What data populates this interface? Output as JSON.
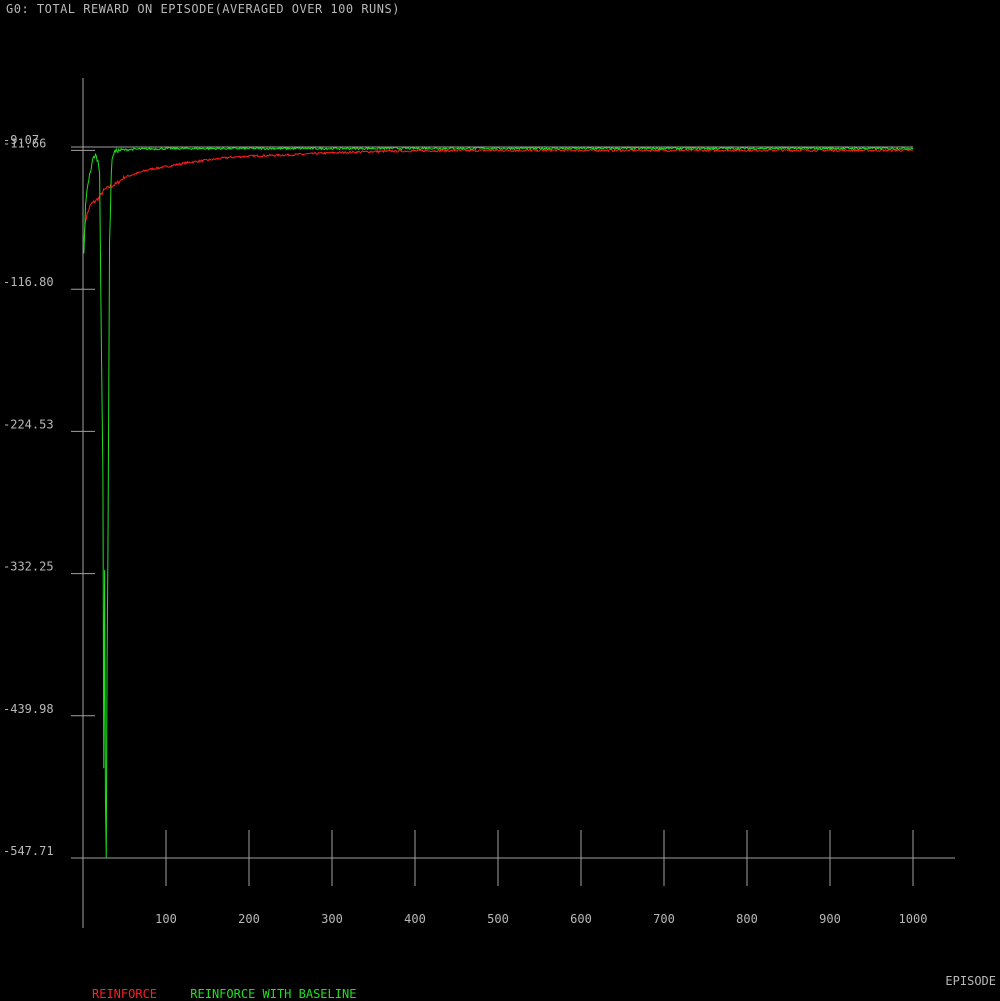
{
  "title": "G0: TOTAL REWARD ON EPISODE(AVERAGED OVER 100 RUNS)",
  "chart_data": {
    "type": "line",
    "title": "G0: TOTAL REWARD ON EPISODE(AVERAGED OVER 100 RUNS)",
    "xlabel": "EPISODE",
    "ylabel": "",
    "xlim": [
      0,
      1000
    ],
    "ylim": [
      -547.71,
      -9.07
    ],
    "x_ticks": [
      100,
      200,
      300,
      400,
      500,
      600,
      700,
      800,
      900,
      1000
    ],
    "x_tick_labels": [
      "100",
      "200",
      "300",
      "400",
      "500",
      "600",
      "700",
      "800",
      "900",
      "1000"
    ],
    "y_ticks": [
      -547.71,
      -439.98,
      -332.25,
      -224.53,
      -116.8,
      -11.66,
      -9.07
    ],
    "y_tick_labels": [
      "-547.71",
      "-439.98",
      "-332.25",
      "-224.53",
      "-116.80",
      "-11.66",
      "-9.07"
    ],
    "grid": false,
    "legend": "bottom-left",
    "series": [
      {
        "name": "REINFORCE",
        "color": "#ff2020",
        "x": [
          1,
          3,
          5,
          8,
          10,
          15,
          20,
          25,
          30,
          40,
          50,
          60,
          80,
          100,
          125,
          150,
          175,
          200,
          250,
          300,
          350,
          400,
          450,
          500,
          600,
          700,
          800,
          900,
          1000
        ],
        "values": [
          -80,
          -65,
          -60,
          -55,
          -52,
          -50,
          -47,
          -42,
          -40,
          -37,
          -32,
          -30,
          -26,
          -24,
          -21,
          -19,
          -17,
          -16,
          -15,
          -13.5,
          -12.5,
          -12,
          -11.8,
          -11.7,
          -11.6,
          -11.6,
          -11.6,
          -11.6,
          -11.6
        ]
      },
      {
        "name": "REINFORCE WITH BASELINE",
        "color": "#20e020",
        "x": [
          1,
          3,
          5,
          8,
          10,
          12,
          15,
          18,
          20,
          22,
          24,
          25,
          26,
          27,
          28,
          29,
          30,
          31,
          32,
          33,
          34,
          35,
          36,
          38,
          40,
          45,
          50,
          60,
          80,
          100,
          150,
          200,
          300,
          400,
          500,
          600,
          700,
          800,
          900,
          1000
        ],
        "values": [
          -90,
          -55,
          -40,
          -30,
          -25,
          -18,
          -15,
          -20,
          -28,
          -150,
          -260,
          -480,
          -330,
          -500,
          -547,
          -400,
          -320,
          -200,
          -80,
          -60,
          -30,
          -20,
          -15,
          -13,
          -12,
          -11.5,
          -11.2,
          -10.8,
          -10.5,
          -10.3,
          -10.2,
          -10.2,
          -10.2,
          -10.1,
          -10.1,
          -10.1,
          -10.1,
          -10.1,
          -10.1,
          -10.1
        ]
      }
    ]
  }
}
